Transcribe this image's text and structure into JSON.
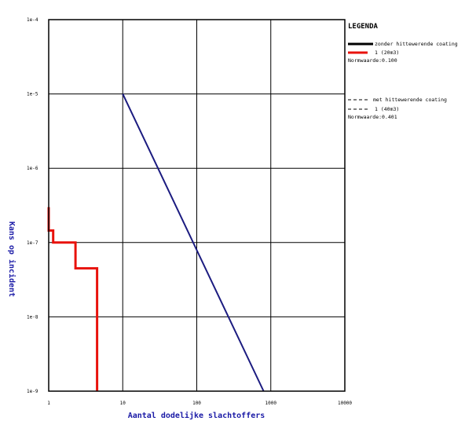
{
  "chart_data": {
    "type": "line",
    "title": "",
    "xlabel": "Aantal dodelijke slachtoffers",
    "ylabel": "Kans op incident",
    "x_scale": "log",
    "y_scale": "log",
    "xlim": [
      1,
      10000
    ],
    "ylim": [
      1e-09,
      0.0001
    ],
    "x_tick_values": [
      1,
      10,
      100,
      1000,
      10000
    ],
    "x_tick_labels": [
      "1",
      "10",
      "100",
      "1000",
      "10000"
    ],
    "y_tick_values": [
      1e-09,
      1e-08,
      1e-07,
      1e-06,
      1e-05,
      0.0001
    ],
    "y_tick_labels": [
      "1e-9",
      "1e-8",
      "1e-7",
      "1e-6",
      "1e-5",
      "1e-4"
    ],
    "grid": true,
    "legend_position": "right",
    "series": [
      {
        "name": "1 (20m3)",
        "color": "#e8120c",
        "style": "step",
        "points": [
          [
            1,
            3e-07
          ],
          [
            1,
            1.45e-07
          ],
          [
            1.15,
            1.45e-07
          ],
          [
            1.15,
            1e-07
          ],
          [
            2.3,
            1e-07
          ],
          [
            2.3,
            4.5e-08
          ],
          [
            4.5,
            4.5e-08
          ],
          [
            4.5,
            1e-09
          ]
        ]
      },
      {
        "name": "Normwaarde",
        "color": "#1b1b80",
        "style": "line",
        "points": [
          [
            10,
            1e-05
          ],
          [
            800,
            1e-09
          ]
        ]
      }
    ]
  },
  "legend": {
    "title": "LEGENDA",
    "items": [
      {
        "style": "solid-black",
        "text": "zonder hittewerende coating"
      },
      {
        "style": "solid-red",
        "text": "1 (20m3)"
      },
      {
        "style": "none",
        "text": "Normwaarde:0.100"
      },
      {
        "style": "dashed",
        "text": "met hittewerende coating"
      },
      {
        "style": "dashed",
        "text": "1 (40m3)"
      },
      {
        "style": "none",
        "text": "Normwaarde:0.401"
      }
    ]
  }
}
